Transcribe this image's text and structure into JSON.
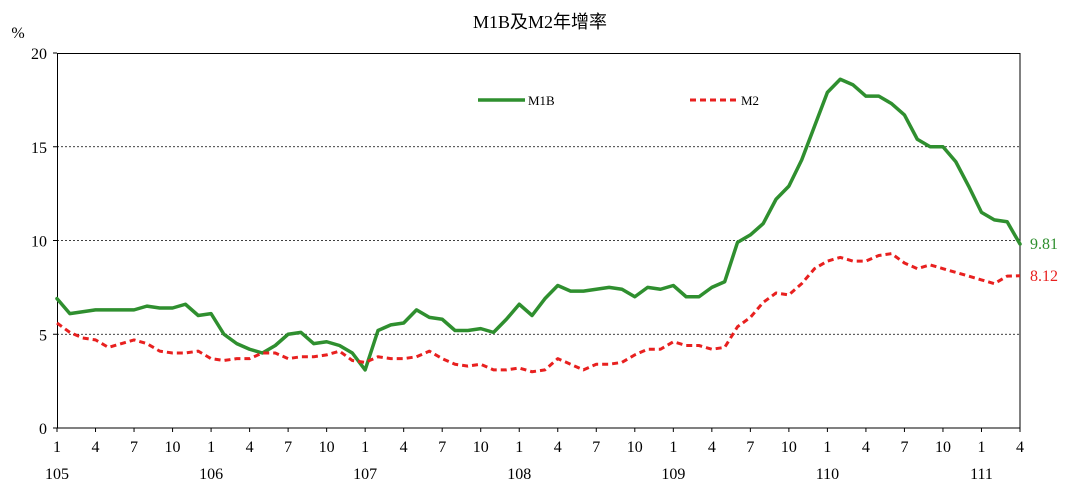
{
  "chart_data": {
    "type": "line",
    "title": "M1B及M2年增率",
    "ylabel": "%",
    "xlabel": "",
    "ylim": [
      0,
      20
    ],
    "yticks": [
      0,
      5,
      10,
      15,
      20
    ],
    "grid": true,
    "legend": "top-center",
    "x": [
      [
        105,
        1
      ],
      [
        105,
        2
      ],
      [
        105,
        3
      ],
      [
        105,
        4
      ],
      [
        105,
        5
      ],
      [
        105,
        6
      ],
      [
        105,
        7
      ],
      [
        105,
        8
      ],
      [
        105,
        9
      ],
      [
        105,
        10
      ],
      [
        105,
        11
      ],
      [
        105,
        12
      ],
      [
        106,
        1
      ],
      [
        106,
        2
      ],
      [
        106,
        3
      ],
      [
        106,
        4
      ],
      [
        106,
        5
      ],
      [
        106,
        6
      ],
      [
        106,
        7
      ],
      [
        106,
        8
      ],
      [
        106,
        9
      ],
      [
        106,
        10
      ],
      [
        106,
        11
      ],
      [
        106,
        12
      ],
      [
        107,
        1
      ],
      [
        107,
        2
      ],
      [
        107,
        3
      ],
      [
        107,
        4
      ],
      [
        107,
        5
      ],
      [
        107,
        6
      ],
      [
        107,
        7
      ],
      [
        107,
        8
      ],
      [
        107,
        9
      ],
      [
        107,
        10
      ],
      [
        107,
        11
      ],
      [
        107,
        12
      ],
      [
        108,
        1
      ],
      [
        108,
        2
      ],
      [
        108,
        3
      ],
      [
        108,
        4
      ],
      [
        108,
        5
      ],
      [
        108,
        6
      ],
      [
        108,
        7
      ],
      [
        108,
        8
      ],
      [
        108,
        9
      ],
      [
        108,
        10
      ],
      [
        108,
        11
      ],
      [
        108,
        12
      ],
      [
        109,
        1
      ],
      [
        109,
        2
      ],
      [
        109,
        3
      ],
      [
        109,
        4
      ],
      [
        109,
        5
      ],
      [
        109,
        6
      ],
      [
        109,
        7
      ],
      [
        109,
        8
      ],
      [
        109,
        9
      ],
      [
        109,
        10
      ],
      [
        109,
        11
      ],
      [
        109,
        12
      ],
      [
        110,
        1
      ],
      [
        110,
        2
      ],
      [
        110,
        3
      ],
      [
        110,
        4
      ],
      [
        110,
        5
      ],
      [
        110,
        6
      ],
      [
        110,
        7
      ],
      [
        110,
        8
      ],
      [
        110,
        9
      ],
      [
        110,
        10
      ],
      [
        110,
        11
      ],
      [
        110,
        12
      ],
      [
        111,
        1
      ],
      [
        111,
        2
      ],
      [
        111,
        3
      ],
      [
        111,
        4
      ]
    ],
    "xticks": [
      {
        "year": 105,
        "month": 1,
        "label": "1"
      },
      {
        "year": 105,
        "month": 4,
        "label": "4"
      },
      {
        "year": 105,
        "month": 7,
        "label": "7"
      },
      {
        "year": 105,
        "month": 10,
        "label": "10"
      },
      {
        "year": 106,
        "month": 1,
        "label": "1"
      },
      {
        "year": 106,
        "month": 4,
        "label": "4"
      },
      {
        "year": 106,
        "month": 7,
        "label": "7"
      },
      {
        "year": 106,
        "month": 10,
        "label": "10"
      },
      {
        "year": 107,
        "month": 1,
        "label": "1"
      },
      {
        "year": 107,
        "month": 4,
        "label": "4"
      },
      {
        "year": 107,
        "month": 7,
        "label": "7"
      },
      {
        "year": 107,
        "month": 10,
        "label": "10"
      },
      {
        "year": 108,
        "month": 1,
        "label": "1"
      },
      {
        "year": 108,
        "month": 4,
        "label": "4"
      },
      {
        "year": 108,
        "month": 7,
        "label": "7"
      },
      {
        "year": 108,
        "month": 10,
        "label": "10"
      },
      {
        "year": 109,
        "month": 1,
        "label": "1"
      },
      {
        "year": 109,
        "month": 4,
        "label": "4"
      },
      {
        "year": 109,
        "month": 7,
        "label": "7"
      },
      {
        "year": 109,
        "month": 10,
        "label": "10"
      },
      {
        "year": 110,
        "month": 1,
        "label": "1"
      },
      {
        "year": 110,
        "month": 4,
        "label": "4"
      },
      {
        "year": 110,
        "month": 7,
        "label": "7"
      },
      {
        "year": 110,
        "month": 10,
        "label": "10"
      },
      {
        "year": 111,
        "month": 1,
        "label": "1"
      },
      {
        "year": 111,
        "month": 4,
        "label": "4"
      }
    ],
    "year_labels": [
      {
        "year": 105,
        "month": 1,
        "label": "105"
      },
      {
        "year": 106,
        "month": 1,
        "label": "106"
      },
      {
        "year": 107,
        "month": 1,
        "label": "107"
      },
      {
        "year": 108,
        "month": 1,
        "label": "108"
      },
      {
        "year": 109,
        "month": 1,
        "label": "109"
      },
      {
        "year": 110,
        "month": 1,
        "label": "110"
      },
      {
        "year": 111,
        "month": 1,
        "label": "111"
      }
    ],
    "series": [
      {
        "name": "M1B",
        "color": "#2f8f2f",
        "line_style": "solid",
        "end_label": "9.81",
        "values": [
          6.9,
          6.1,
          6.2,
          6.3,
          6.3,
          6.3,
          6.3,
          6.5,
          6.4,
          6.4,
          6.6,
          6.0,
          6.1,
          5.0,
          4.5,
          4.2,
          4.0,
          4.4,
          5.0,
          5.1,
          4.5,
          4.6,
          4.4,
          4.0,
          3.1,
          5.2,
          5.5,
          5.6,
          6.3,
          5.9,
          5.8,
          5.2,
          5.2,
          5.3,
          5.1,
          5.8,
          6.6,
          6.0,
          6.9,
          7.6,
          7.3,
          7.3,
          7.4,
          7.5,
          7.4,
          7.0,
          7.5,
          7.4,
          7.6,
          7.0,
          7.0,
          7.5,
          7.8,
          9.9,
          10.3,
          10.9,
          12.2,
          12.9,
          14.3,
          16.1,
          17.9,
          18.6,
          18.3,
          17.7,
          17.7,
          17.3,
          16.7,
          15.4,
          15.0,
          15.0,
          14.2,
          12.9,
          11.5,
          11.1,
          11.0,
          9.81
        ]
      },
      {
        "name": "M2",
        "color": "#e8201f",
        "line_style": "dashed",
        "end_label": "8.12",
        "values": [
          5.6,
          5.1,
          4.8,
          4.7,
          4.3,
          4.5,
          4.7,
          4.5,
          4.1,
          4.0,
          4.0,
          4.1,
          3.7,
          3.6,
          3.7,
          3.7,
          4.0,
          4.0,
          3.7,
          3.8,
          3.8,
          3.9,
          4.1,
          3.6,
          3.5,
          3.8,
          3.7,
          3.7,
          3.8,
          4.1,
          3.7,
          3.4,
          3.3,
          3.4,
          3.1,
          3.1,
          3.2,
          3.0,
          3.1,
          3.7,
          3.4,
          3.1,
          3.4,
          3.4,
          3.5,
          3.9,
          4.2,
          4.2,
          4.6,
          4.4,
          4.4,
          4.2,
          4.3,
          5.4,
          5.9,
          6.7,
          7.2,
          7.1,
          7.7,
          8.5,
          8.9,
          9.1,
          8.9,
          8.9,
          9.2,
          9.3,
          8.8,
          8.5,
          8.7,
          8.5,
          8.3,
          8.1,
          7.9,
          7.7,
          8.1,
          8.12
        ]
      }
    ]
  }
}
